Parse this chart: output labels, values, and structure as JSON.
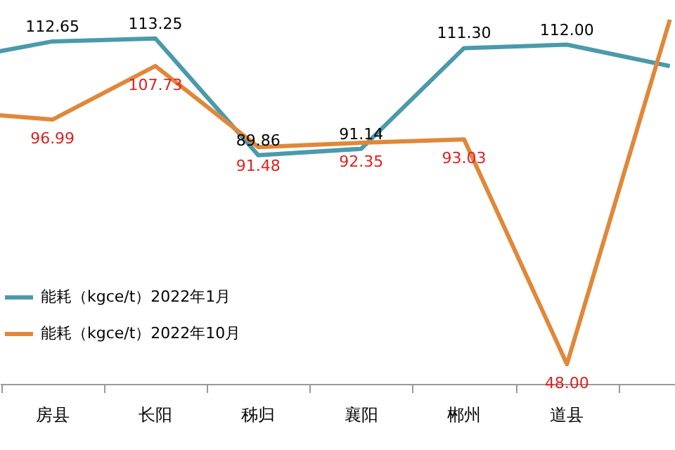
{
  "chart_data": {
    "type": "line",
    "categories": [
      null,
      "房县",
      "长阳",
      "秭归",
      "襄阳",
      "郴州",
      "道县",
      null
    ],
    "series": [
      {
        "name": "能耗（kgce/t）2022年1月",
        "color": "#4a9aab",
        "values": [
          108.8,
          112.65,
          113.25,
          89.86,
          91.14,
          111.3,
          112.0,
          107.7
        ],
        "value_labels": [
          null,
          "112.65",
          "113.25",
          "89.86",
          "91.14",
          "111.30",
          "112.00",
          null
        ]
      },
      {
        "name": "能耗（kgce/t）2022年10月",
        "color": "#e0883a",
        "values": [
          98.7,
          96.99,
          107.73,
          91.48,
          92.35,
          93.03,
          48.0,
          117.0
        ],
        "value_labels": [
          null,
          "96.99",
          "107.73",
          "91.48",
          "92.35",
          "93.03",
          "48.00",
          null
        ]
      }
    ],
    "legend": "bottom left",
    "grid": false,
    "marker": "none",
    "line_style": "solid",
    "tick_labels": "x"
  }
}
